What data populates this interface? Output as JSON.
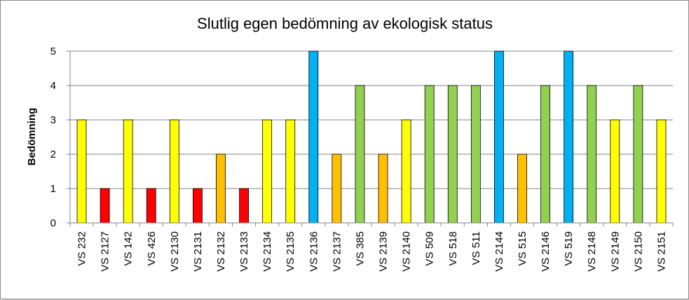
{
  "chart_data": {
    "type": "bar",
    "title": "Slutlig egen bedömning av ekologisk status",
    "xlabel": "",
    "ylabel": "Bedömning",
    "ylim": [
      0,
      5
    ],
    "yticks": [
      0,
      1,
      2,
      3,
      4,
      5
    ],
    "grid": true,
    "legend": "none",
    "categories": [
      "VS 232",
      "VS 2127",
      "VS 142",
      "VS 426",
      "VS 2130",
      "VS 2131",
      "VS 2132",
      "VS 2133",
      "VS 2134",
      "VS 2135",
      "VS 2136",
      "VS 2137",
      "VS 385",
      "VS 2139",
      "VS 2140",
      "VS 509",
      "VS 518",
      "VS 511",
      "VS 2144",
      "VS 515",
      "VS 2146",
      "VS 519",
      "VS 2148",
      "VS 2149",
      "VS 2150",
      "VS 2151"
    ],
    "values": [
      3,
      1,
      3,
      1,
      3,
      1,
      2,
      1,
      3,
      3,
      5,
      2,
      4,
      2,
      3,
      4,
      4,
      4,
      5,
      2,
      4,
      5,
      4,
      3,
      4,
      3
    ],
    "value_colors": {
      "1": "#ff0000",
      "2": "#ffc000",
      "3": "#ffff00",
      "4": "#92d050",
      "5": "#00b0f0"
    }
  }
}
